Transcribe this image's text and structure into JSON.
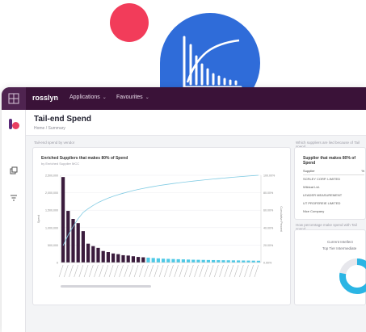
{
  "app": {
    "brand": "rosslyn",
    "nav": [
      {
        "label": "Applications"
      },
      {
        "label": "Favourites"
      }
    ]
  },
  "page": {
    "title": "Tail-end Spend",
    "breadcrumb": "Home / Summary"
  },
  "main_panel": {
    "caption": "Tail-end spend by vendor",
    "chart_title": "Enriched Suppliers that makes 80% of Spend",
    "chart_subtitle": "by Enriched Supplier MCC"
  },
  "side_panel_top": {
    "caption": "Which suppliers are lied because of Tail spend",
    "title": "Supplier that makes 80% of Spend",
    "header_left": "Supplier",
    "header_right": "%",
    "rows": [
      "SCRLEY CORP. LIMITED",
      "Wildcat Ltd.",
      "LEADER MEASUREMENT",
      "UT PROFEREIE LIMITED",
      "Nice Company"
    ]
  },
  "side_panel_bottom": {
    "caption": "How percentage make spend with Tail spend",
    "legend": [
      "Current Intellect",
      "Top Tier Intermediate"
    ]
  },
  "chart_data": {
    "type": "bar",
    "title": "Enriched Suppliers that makes 80% of Spend",
    "subtitle": "by Enriched Supplier MCC",
    "ylabel": "Spend",
    "y2label": "Cumulative Percent",
    "ylim": [
      0,
      2500000
    ],
    "y2lim": [
      0,
      100
    ],
    "yticks": [
      "2,500,000",
      "2,000,000",
      "1,500,000",
      "1,000,000",
      "500,000",
      "0"
    ],
    "y2ticks": [
      "100.00%",
      "80.00%",
      "60.00%",
      "40.00%",
      "20.00%",
      "0.00%"
    ],
    "values": [
      2450000,
      1480000,
      1250000,
      1130000,
      900000,
      540000,
      470000,
      420000,
      330000,
      300000,
      260000,
      240000,
      210000,
      200000,
      180000,
      160000,
      150000,
      140000,
      130000,
      120000,
      110000,
      105000,
      100000,
      95000,
      90000,
      85000,
      80000,
      78000,
      75000,
      72000,
      70000,
      68000,
      66000,
      64000,
      62000,
      60000,
      58000,
      56000,
      54000,
      52000
    ],
    "highlight_from": 17,
    "grid": true,
    "colors": {
      "primary": "#3b1c3d",
      "tail": "#4ec9e6",
      "cumulative_line": "#80cbe3"
    }
  },
  "donut": {
    "value": 0.78,
    "colors": {
      "main": "#2bb5e4",
      "rest": "#e7e7ec"
    }
  }
}
